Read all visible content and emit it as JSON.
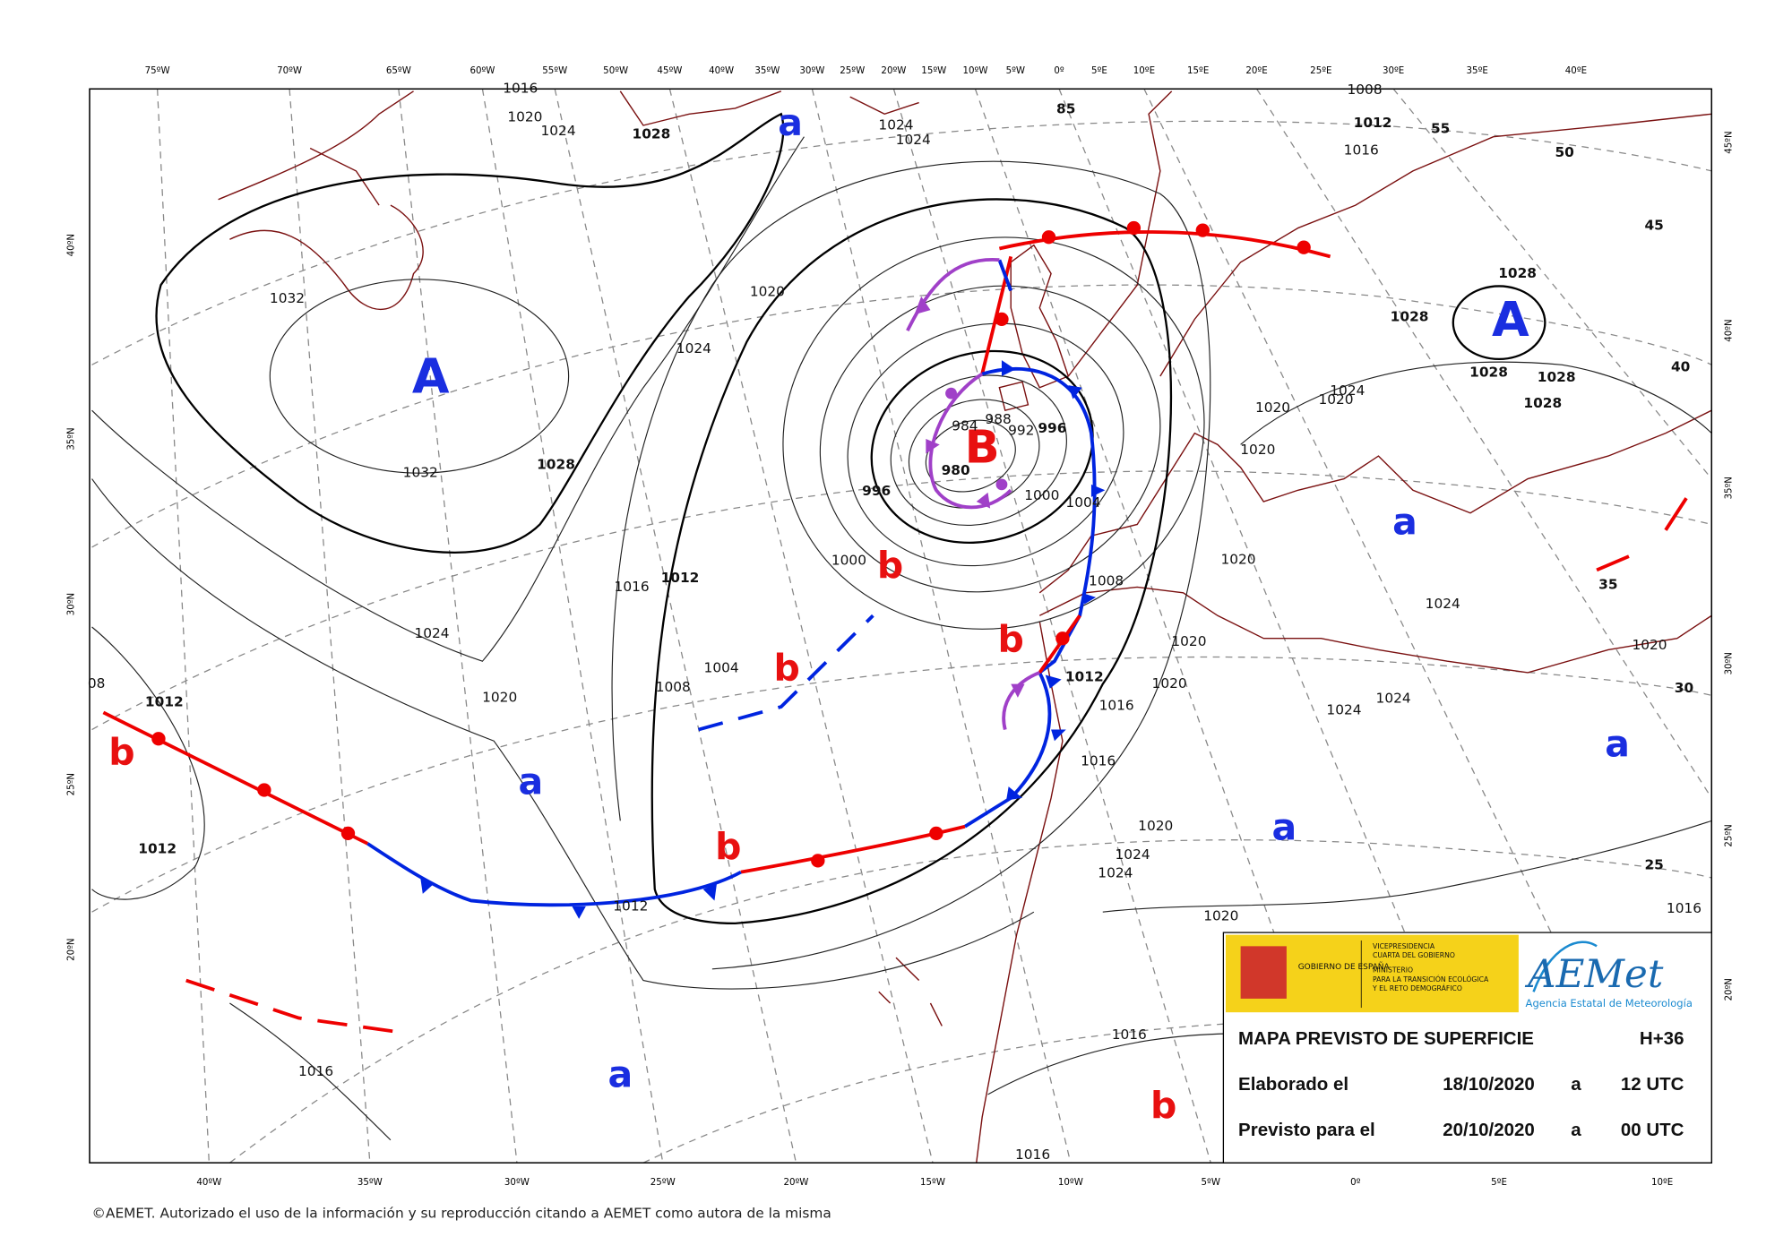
{
  "top_longitudes": [
    "75ºW",
    "70ºW",
    "65ºW",
    "60ºW",
    "55ºW",
    "50ºW",
    "45ºW",
    "40ºW",
    "35ºW",
    "30ºW",
    "25ºW",
    "20ºW",
    "15ºW",
    "10ºW",
    "5ºW",
    "0º",
    "5ºE",
    "10ºE",
    "15ºE",
    "20ºE",
    "25ºE",
    "30ºE",
    "35ºE",
    "40ºE"
  ],
  "bottom_longitudes": [
    "40ºW",
    "35ºW",
    "30ºW",
    "25ºW",
    "20ºW",
    "15ºW",
    "10ºW",
    "5ºW",
    "0º",
    "5ºE",
    "10ºE"
  ],
  "left_latitudes": [
    "40ºN",
    "35ºN",
    "30ºN",
    "25ºN",
    "20ºN"
  ],
  "right_latitudes": [
    "45ºN",
    "40ºN",
    "35ºN",
    "30ºN",
    "25ºN",
    "20ºN"
  ],
  "pressure_centers": [
    {
      "label": "A",
      "kind": "high"
    },
    {
      "label": "A",
      "kind": "high"
    },
    {
      "label": "B",
      "kind": "low"
    },
    {
      "label": "a",
      "kind": "high"
    },
    {
      "label": "a",
      "kind": "high"
    },
    {
      "label": "a",
      "kind": "high"
    },
    {
      "label": "a",
      "kind": "high"
    },
    {
      "label": "a",
      "kind": "high"
    },
    {
      "label": "a",
      "kind": "high"
    },
    {
      "label": "b",
      "kind": "low"
    },
    {
      "label": "b",
      "kind": "low"
    },
    {
      "label": "b",
      "kind": "low"
    },
    {
      "label": "b",
      "kind": "low"
    },
    {
      "label": "b",
      "kind": "low"
    },
    {
      "label": "b",
      "kind": "low"
    }
  ],
  "isobar_labels": [
    "1016",
    "1020",
    "1024",
    "1028",
    "1024",
    "1024",
    "1008",
    "1012",
    "1016",
    "1032",
    "1032",
    "1028",
    "1020",
    "1024",
    "1016",
    "1012",
    "1024",
    "1020",
    "1012",
    "1012",
    "1008",
    "1004",
    "1000",
    "996",
    "984",
    "988",
    "992",
    "996",
    "980",
    "1000",
    "1004",
    "1008",
    "1012",
    "1016",
    "1016",
    "1020",
    "1020",
    "1020",
    "1020",
    "1020",
    "1020",
    "1024",
    "1028",
    "1028",
    "1028",
    "1028",
    "1028",
    "1024",
    "1024",
    "1020",
    "1020",
    "1024",
    "1024",
    "1020",
    "1012",
    "1016",
    "1016",
    "1016",
    "1016",
    "1024",
    "08"
  ],
  "graticule_labels": [
    "85",
    "55",
    "50",
    "45",
    "40",
    "35",
    "30",
    "25"
  ],
  "legend": {
    "title": "MAPA PREVISTO DE SUPERFICIE",
    "forecast_hour": "H+36",
    "made_label": "Elaborado el",
    "made_date": "18/10/2020",
    "made_at": "a",
    "made_time": "12 UTC",
    "valid_label": "Previsto para el",
    "valid_date": "20/10/2020",
    "valid_at": "a",
    "valid_time": "00 UTC"
  },
  "logos": {
    "government": "GOBIERNO DE ESPAÑA",
    "vice_1": "VICEPRESIDENCIA",
    "vice_2": "CUARTA DEL GOBIERNO",
    "ministry_1": "MINISTERIO",
    "ministry_2": "PARA LA TRANSICIÓN ECOLÓGICA",
    "ministry_3": "Y EL RETO DEMOGRÁFICO",
    "aemet": "AEMet",
    "aemet_full": "Agencia Estatal de Meteorología"
  },
  "copyright": "©AEMET. Autorizado el uso de la información y su reproducción citando a AEMET como autora de la misma"
}
